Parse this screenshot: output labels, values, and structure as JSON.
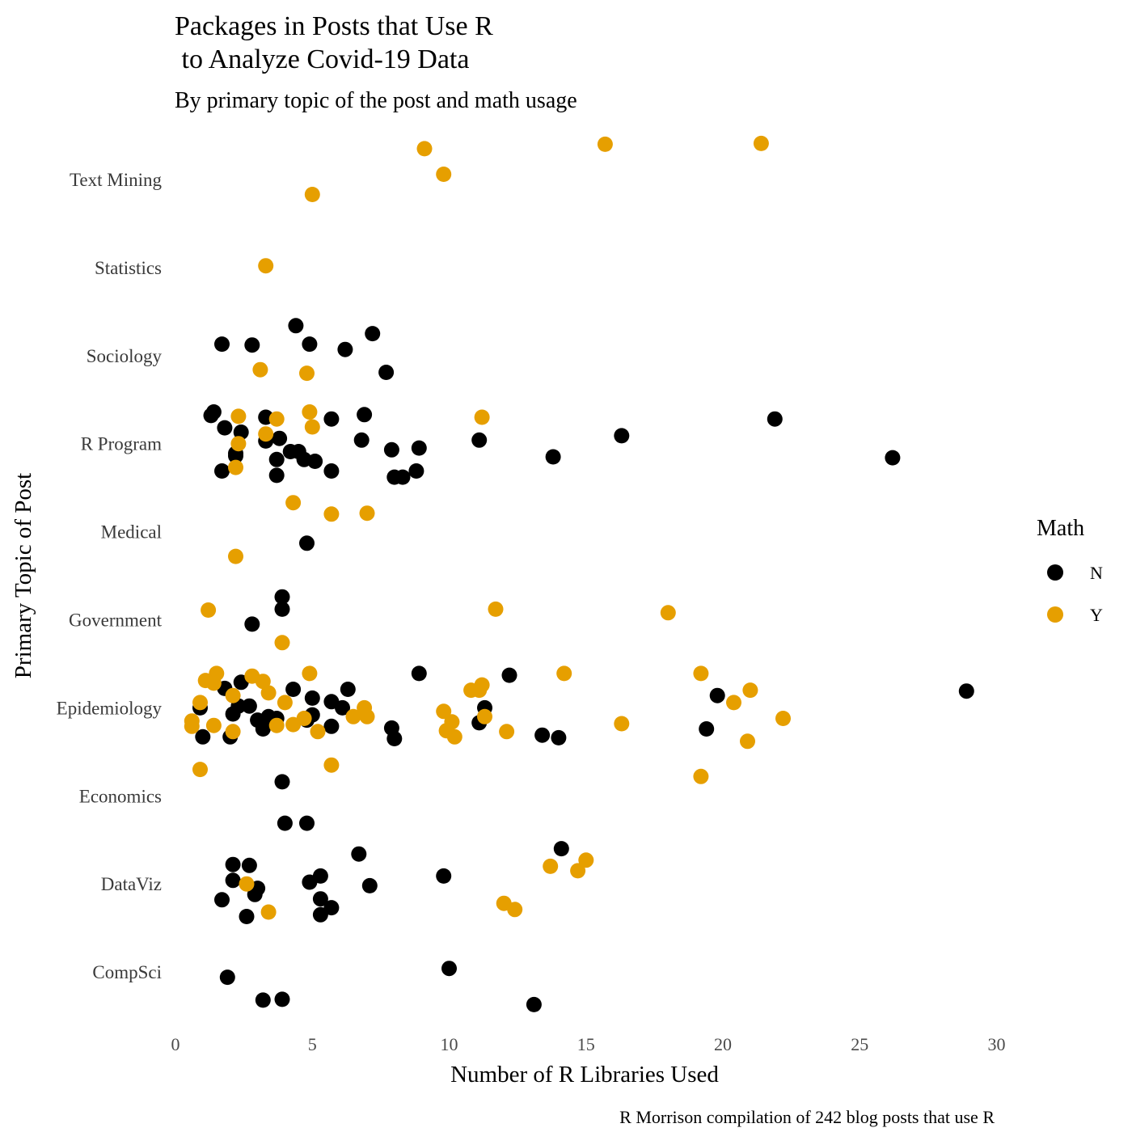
{
  "chart_data": {
    "type": "scatter",
    "title": [
      "Packages in Posts that Use R",
      " to Analyze Covid-19 Data"
    ],
    "subtitle": "By primary topic of the post and math usage",
    "xlabel": "Number of R Libraries Used",
    "ylabel": "Primary Topic of Post",
    "caption": "R Morrison compilation of 242 blog posts that use R",
    "xlim": [
      0,
      32
    ],
    "xticks": [
      0,
      5,
      10,
      15,
      20,
      25,
      30
    ],
    "categories": [
      "Text Mining",
      "Statistics",
      "Sociology",
      "R Program",
      "Medical",
      "Government",
      "Epidemiology",
      "Economics",
      "DataViz",
      "CompSci"
    ],
    "grid": false,
    "legend": {
      "title": "Math",
      "position": "right",
      "entries": [
        "N",
        "Y"
      ]
    },
    "colors": {
      "N": "#000000",
      "Y": "#E69F00"
    },
    "series": [
      {
        "name": "N",
        "color": "#000000",
        "points": [
          [
            "Sociology",
            4.4,
            0.34
          ],
          [
            "Sociology",
            7.2,
            0.25
          ],
          [
            "Sociology",
            1.7,
            0.13
          ],
          [
            "Sociology",
            2.8,
            0.12
          ],
          [
            "Sociology",
            4.9,
            0.13
          ],
          [
            "Sociology",
            6.2,
            0.07
          ],
          [
            "Sociology",
            7.7,
            -0.19
          ],
          [
            "R Program",
            1.4,
            0.36
          ],
          [
            "R Program",
            1.3,
            0.32
          ],
          [
            "R Program",
            3.3,
            0.3
          ],
          [
            "R Program",
            5.7,
            0.28
          ],
          [
            "R Program",
            6.9,
            0.33
          ],
          [
            "R Program",
            21.9,
            0.28
          ],
          [
            "R Program",
            1.8,
            0.18
          ],
          [
            "R Program",
            2.4,
            0.13
          ],
          [
            "R Program",
            3.3,
            0.03
          ],
          [
            "R Program",
            3.8,
            0.06
          ],
          [
            "R Program",
            6.8,
            0.04
          ],
          [
            "R Program",
            11.1,
            0.04
          ],
          [
            "R Program",
            16.3,
            0.09
          ],
          [
            "R Program",
            7.9,
            -0.07
          ],
          [
            "R Program",
            8.9,
            -0.05
          ],
          [
            "R Program",
            4.2,
            -0.09
          ],
          [
            "R Program",
            4.5,
            -0.09
          ],
          [
            "R Program",
            2.2,
            -0.11
          ],
          [
            "R Program",
            2.2,
            -0.14
          ],
          [
            "R Program",
            3.7,
            -0.18
          ],
          [
            "R Program",
            4.7,
            -0.18
          ],
          [
            "R Program",
            5.1,
            -0.2
          ],
          [
            "R Program",
            13.8,
            -0.15
          ],
          [
            "R Program",
            26.2,
            -0.16
          ],
          [
            "R Program",
            1.7,
            -0.31
          ],
          [
            "R Program",
            5.7,
            -0.31
          ],
          [
            "R Program",
            8.8,
            -0.31
          ],
          [
            "R Program",
            3.7,
            -0.36
          ],
          [
            "R Program",
            8.0,
            -0.38
          ],
          [
            "R Program",
            8.3,
            -0.38
          ],
          [
            "Medical",
            4.8,
            -0.13
          ],
          [
            "Government",
            3.9,
            0.26
          ],
          [
            "Government",
            3.9,
            0.12
          ],
          [
            "Government",
            2.8,
            -0.05
          ],
          [
            "Epidemiology",
            8.9,
            0.39
          ],
          [
            "Epidemiology",
            12.2,
            0.37
          ],
          [
            "Epidemiology",
            2.4,
            0.29
          ],
          [
            "Epidemiology",
            1.8,
            0.22
          ],
          [
            "Epidemiology",
            4.3,
            0.21
          ],
          [
            "Epidemiology",
            6.3,
            0.21
          ],
          [
            "Epidemiology",
            28.9,
            0.19
          ],
          [
            "Epidemiology",
            19.8,
            0.14
          ],
          [
            "Epidemiology",
            5.0,
            0.11
          ],
          [
            "Epidemiology",
            5.7,
            0.07
          ],
          [
            "Epidemiology",
            0.9,
            0.0
          ],
          [
            "Epidemiology",
            2.3,
            0.02
          ],
          [
            "Epidemiology",
            2.7,
            0.02
          ],
          [
            "Epidemiology",
            6.1,
            0.0
          ],
          [
            "Epidemiology",
            11.3,
            0.0
          ],
          [
            "Epidemiology",
            2.1,
            -0.07
          ],
          [
            "Epidemiology",
            3.4,
            -0.1
          ],
          [
            "Epidemiology",
            3.7,
            -0.12
          ],
          [
            "Epidemiology",
            5.0,
            -0.08
          ],
          [
            "Epidemiology",
            3.0,
            -0.14
          ],
          [
            "Epidemiology",
            4.8,
            -0.14
          ],
          [
            "Epidemiology",
            11.1,
            -0.17
          ],
          [
            "Epidemiology",
            3.2,
            -0.24
          ],
          [
            "Epidemiology",
            5.7,
            -0.21
          ],
          [
            "Epidemiology",
            7.9,
            -0.23
          ],
          [
            "Epidemiology",
            19.4,
            -0.24
          ],
          [
            "Epidemiology",
            1.0,
            -0.33
          ],
          [
            "Epidemiology",
            2.0,
            -0.33
          ],
          [
            "Epidemiology",
            8.0,
            -0.35
          ],
          [
            "Epidemiology",
            13.4,
            -0.31
          ],
          [
            "Epidemiology",
            14.0,
            -0.34
          ],
          [
            "Economics",
            3.9,
            0.16
          ],
          [
            "Economics",
            4.0,
            -0.31
          ],
          [
            "Economics",
            4.8,
            -0.31
          ],
          [
            "DataViz",
            14.1,
            0.4
          ],
          [
            "DataViz",
            6.7,
            0.34
          ],
          [
            "DataViz",
            2.1,
            0.22
          ],
          [
            "DataViz",
            2.7,
            0.21
          ],
          [
            "DataViz",
            5.3,
            0.09
          ],
          [
            "DataViz",
            9.8,
            0.09
          ],
          [
            "DataViz",
            2.1,
            0.04
          ],
          [
            "DataViz",
            4.9,
            0.02
          ],
          [
            "DataViz",
            3.0,
            -0.05
          ],
          [
            "DataViz",
            7.1,
            -0.02
          ],
          [
            "DataViz",
            2.9,
            -0.12
          ],
          [
            "DataViz",
            1.7,
            -0.18
          ],
          [
            "DataViz",
            5.3,
            -0.17
          ],
          [
            "DataViz",
            5.7,
            -0.27
          ],
          [
            "DataViz",
            5.3,
            -0.35
          ],
          [
            "DataViz",
            2.6,
            -0.37
          ],
          [
            "CompSci",
            10.0,
            0.04
          ],
          [
            "CompSci",
            1.9,
            -0.06
          ],
          [
            "CompSci",
            3.2,
            -0.32
          ],
          [
            "CompSci",
            3.9,
            -0.31
          ],
          [
            "CompSci",
            13.1,
            -0.37
          ]
        ]
      },
      {
        "name": "Y",
        "color": "#E69F00",
        "points": [
          [
            "Text Mining",
            21.4,
            0.41
          ],
          [
            "Text Mining",
            15.7,
            0.4
          ],
          [
            "Text Mining",
            9.1,
            0.35
          ],
          [
            "Text Mining",
            9.8,
            0.06
          ],
          [
            "Text Mining",
            5.0,
            -0.17
          ],
          [
            "Statistics",
            3.3,
            0.02
          ],
          [
            "Sociology",
            3.1,
            -0.16
          ],
          [
            "Sociology",
            4.8,
            -0.2
          ],
          [
            "R Program",
            2.3,
            0.31
          ],
          [
            "R Program",
            3.7,
            0.28
          ],
          [
            "R Program",
            4.9,
            0.36
          ],
          [
            "R Program",
            5.0,
            0.19
          ],
          [
            "R Program",
            11.2,
            0.3
          ],
          [
            "R Program",
            3.3,
            0.11
          ],
          [
            "R Program",
            2.3,
            0.0
          ],
          [
            "R Program",
            2.2,
            -0.27
          ],
          [
            "Medical",
            4.3,
            0.33
          ],
          [
            "Medical",
            7.0,
            0.21
          ],
          [
            "Medical",
            5.7,
            0.2
          ],
          [
            "Medical",
            2.2,
            -0.28
          ],
          [
            "Government",
            1.2,
            0.11
          ],
          [
            "Government",
            11.7,
            0.12
          ],
          [
            "Government",
            18.0,
            0.08
          ],
          [
            "Government",
            3.9,
            -0.26
          ],
          [
            "Epidemiology",
            4.9,
            0.39
          ],
          [
            "Epidemiology",
            14.2,
            0.39
          ],
          [
            "Epidemiology",
            19.2,
            0.39
          ],
          [
            "Epidemiology",
            1.5,
            0.39
          ],
          [
            "Epidemiology",
            2.8,
            0.36
          ],
          [
            "Epidemiology",
            3.2,
            0.3
          ],
          [
            "Epidemiology",
            1.1,
            0.31
          ],
          [
            "Epidemiology",
            1.4,
            0.28
          ],
          [
            "Epidemiology",
            11.2,
            0.26
          ],
          [
            "Epidemiology",
            21.0,
            0.2
          ],
          [
            "Epidemiology",
            10.8,
            0.2
          ],
          [
            "Epidemiology",
            11.1,
            0.2
          ],
          [
            "Epidemiology",
            3.4,
            0.17
          ],
          [
            "Epidemiology",
            2.1,
            0.14
          ],
          [
            "Epidemiology",
            0.9,
            0.06
          ],
          [
            "Epidemiology",
            4.0,
            0.06
          ],
          [
            "Epidemiology",
            20.4,
            0.06
          ],
          [
            "Epidemiology",
            6.9,
            0.0
          ],
          [
            "Epidemiology",
            9.8,
            -0.04
          ],
          [
            "Epidemiology",
            6.5,
            -0.1
          ],
          [
            "Epidemiology",
            7.0,
            -0.1
          ],
          [
            "Epidemiology",
            11.3,
            -0.1
          ],
          [
            "Epidemiology",
            22.2,
            -0.12
          ],
          [
            "Epidemiology",
            0.6,
            -0.15
          ],
          [
            "Epidemiology",
            4.7,
            -0.12
          ],
          [
            "Epidemiology",
            10.1,
            -0.16
          ],
          [
            "Epidemiology",
            16.3,
            -0.18
          ],
          [
            "Epidemiology",
            0.6,
            -0.21
          ],
          [
            "Epidemiology",
            1.4,
            -0.2
          ],
          [
            "Epidemiology",
            3.7,
            -0.2
          ],
          [
            "Epidemiology",
            4.3,
            -0.19
          ],
          [
            "Epidemiology",
            2.1,
            -0.27
          ],
          [
            "Epidemiology",
            5.2,
            -0.27
          ],
          [
            "Epidemiology",
            9.9,
            -0.26
          ],
          [
            "Epidemiology",
            12.1,
            -0.27
          ],
          [
            "Epidemiology",
            10.2,
            -0.33
          ],
          [
            "Epidemiology",
            20.9,
            -0.38
          ],
          [
            "Epidemiology",
            5.7,
            -0.65
          ],
          [
            "Epidemiology",
            0.9,
            -0.7
          ],
          [
            "Epidemiology",
            19.2,
            -0.78
          ],
          [
            "DataViz",
            15.0,
            0.27
          ],
          [
            "DataViz",
            13.7,
            0.2
          ],
          [
            "DataViz",
            14.7,
            0.15
          ],
          [
            "DataViz",
            2.6,
            0.0
          ],
          [
            "DataViz",
            12.0,
            -0.22
          ],
          [
            "DataViz",
            12.4,
            -0.29
          ],
          [
            "DataViz",
            3.4,
            -0.32
          ]
        ]
      }
    ]
  }
}
